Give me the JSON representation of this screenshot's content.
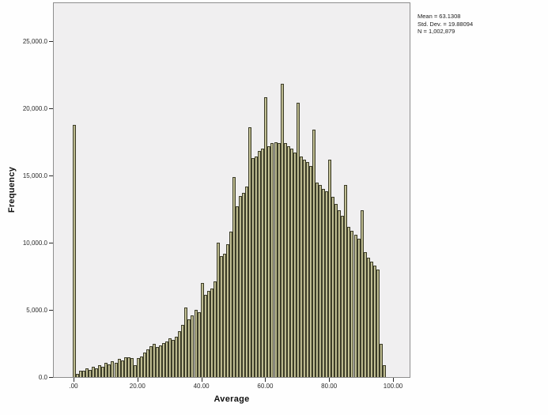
{
  "figure": {
    "y_axis": {
      "title": "Frequency",
      "tick_labels": [
        "0.0",
        "5,000.0",
        "10,000.0",
        "15,000.0",
        "20,000.0",
        "25,000.0"
      ],
      "tick_values": [
        0,
        5000,
        10000,
        15000,
        20000,
        25000
      ]
    },
    "x_axis": {
      "title": "Average",
      "tick_labels": [
        ".00",
        "20.00",
        "40.00",
        "60.00",
        "80.00",
        "100.00"
      ],
      "tick_values": [
        0,
        20,
        40,
        60,
        80,
        100
      ]
    },
    "stats_box": {
      "lines": [
        "Mean = 63.1308",
        "Std. Dev. = 19.88094",
        "N = 1,002,879"
      ]
    },
    "colors": {
      "bar_fill": "#c3c094",
      "bar_fill_light": "#d9d6ae",
      "bar_fill_dark": "#9d9b70",
      "bar_border": "#3c3c28",
      "plot_background": "#f0eff0",
      "frame_border": "#8e8e8e",
      "page_background": "#fefefe",
      "text": "#1a1a1a"
    }
  },
  "chart_data": {
    "type": "bar",
    "title": "",
    "xlabel": "Average",
    "ylabel": "Frequency",
    "bin_width": 1,
    "xlim": [
      -6.4,
      105.7
    ],
    "ylim": [
      0,
      27900
    ],
    "y_tick_step": 5000,
    "grid": false,
    "legend": false,
    "stats": {
      "mean": "63.1308",
      "std_dev": "19.88094",
      "n": "1,002,879"
    },
    "x": [
      0,
      1,
      2,
      3,
      4,
      5,
      6,
      7,
      8,
      9,
      10,
      11,
      12,
      13,
      14,
      15,
      16,
      17,
      18,
      19,
      20,
      21,
      22,
      23,
      24,
      25,
      26,
      27,
      28,
      29,
      30,
      31,
      32,
      33,
      34,
      35,
      36,
      37,
      38,
      39,
      40,
      41,
      42,
      43,
      44,
      45,
      46,
      47,
      48,
      49,
      50,
      51,
      52,
      53,
      54,
      55,
      56,
      57,
      58,
      59,
      60,
      61,
      62,
      63,
      64,
      65,
      66,
      67,
      68,
      69,
      70,
      71,
      72,
      73,
      74,
      75,
      76,
      77,
      78,
      79,
      80,
      81,
      82,
      83,
      84,
      85,
      86,
      87,
      88,
      89,
      90,
      91,
      92,
      93,
      94,
      95,
      96,
      97
    ],
    "frequencies": [
      18760,
      230,
      450,
      480,
      620,
      550,
      750,
      650,
      880,
      780,
      1050,
      950,
      1150,
      1050,
      1350,
      1250,
      1500,
      1450,
      1400,
      900,
      1400,
      1550,
      1850,
      2050,
      2300,
      2500,
      2250,
      2350,
      2550,
      2650,
      2900,
      2750,
      3000,
      3400,
      3900,
      5200,
      4300,
      4600,
      5000,
      4800,
      7000,
      6100,
      6400,
      6600,
      7100,
      10000,
      9000,
      9200,
      9900,
      10800,
      14900,
      12700,
      13500,
      13700,
      14200,
      18600,
      16300,
      16400,
      16800,
      17000,
      20800,
      17200,
      17400,
      17500,
      17400,
      21800,
      17400,
      17200,
      17000,
      16700,
      20400,
      16400,
      16200,
      16000,
      15700,
      18400,
      14500,
      14300,
      14000,
      13800,
      16200,
      13400,
      12900,
      12400,
      12000,
      14300,
      11200,
      10900,
      10600,
      10300,
      12400,
      9300,
      8900,
      8600,
      8300,
      8000,
      2500,
      900
    ]
  }
}
